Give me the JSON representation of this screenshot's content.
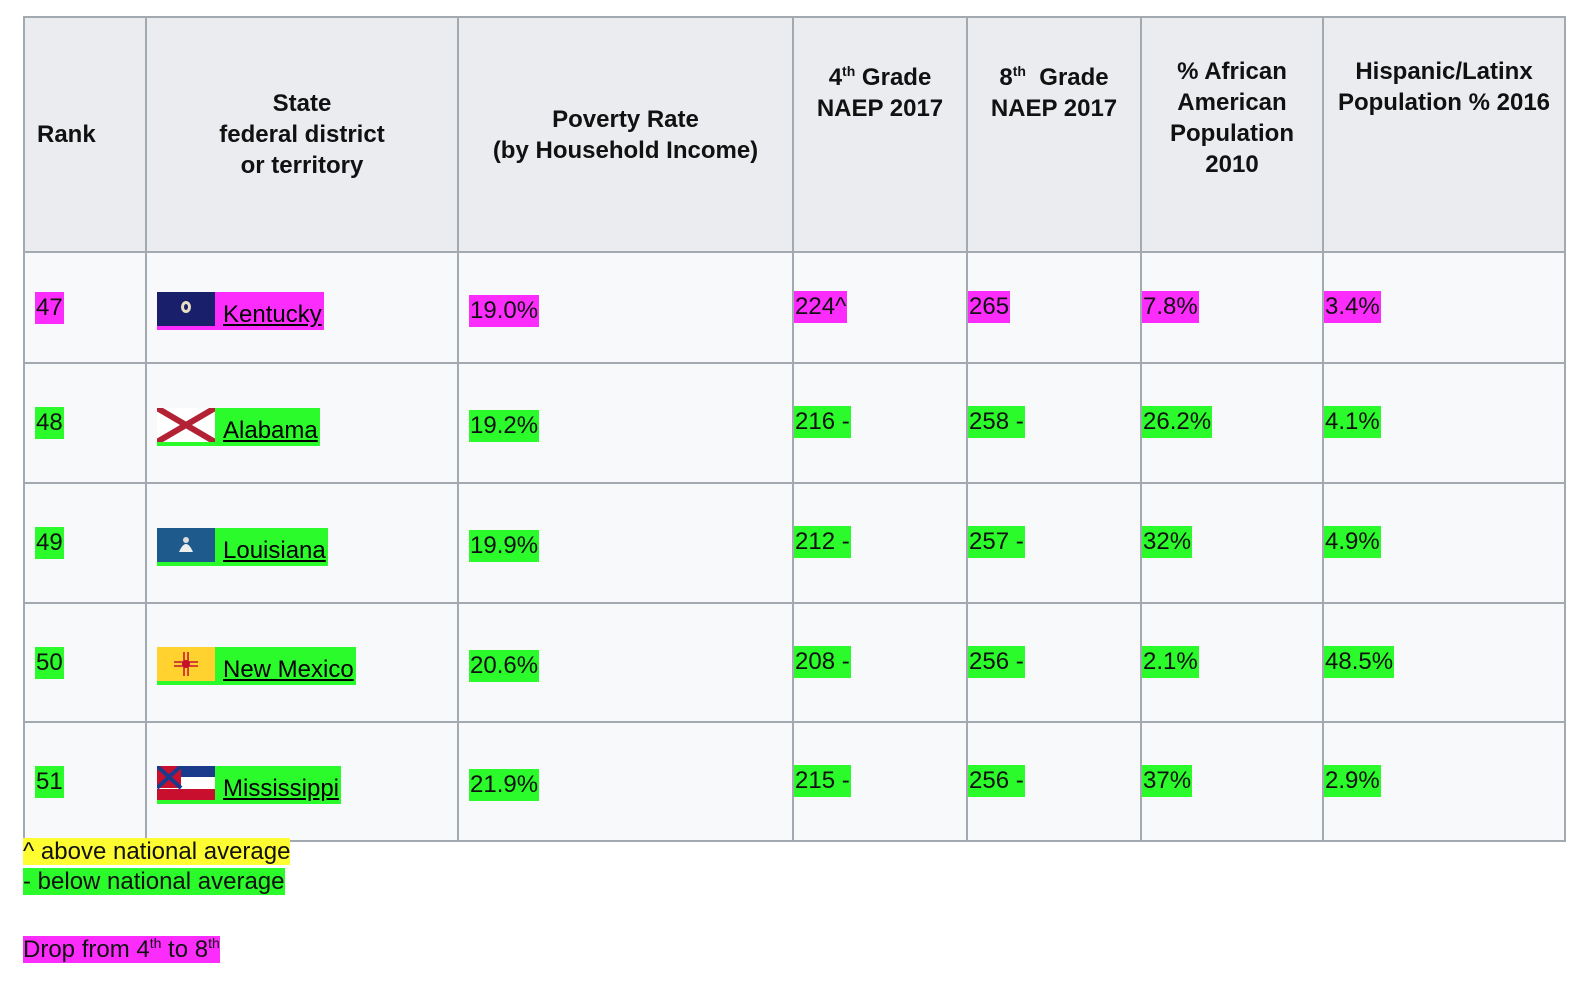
{
  "headers": {
    "rank": "Rank",
    "state_l1": "State",
    "state_l2": "federal district",
    "state_l3": "or territory",
    "poverty_l1": "Poverty Rate",
    "poverty_l2": "(by Household Income)",
    "g4_pre": "4",
    "g4_sup": "th",
    "g4_post": " Grade",
    "g4_l2": "NAEP 2017",
    "g8_pre": "8",
    "g8_sup": "th",
    "g8_post": "  Grade",
    "g8_l2": "NAEP 2017",
    "aa_l1": "% African",
    "aa_l2": "American",
    "aa_l3": "Population",
    "aa_l4": "2010",
    "hisp_l1": "Hispanic/Latinx",
    "hisp_l2": "Population % 2016"
  },
  "colors": {
    "below": "#2bfa2b",
    "drop": "#fc2cfc",
    "above": "#fdfd32"
  },
  "rows": [
    {
      "rank": "47",
      "state": "Kentucky",
      "flag": "kentucky-flag",
      "poverty": "19.0%",
      "g4": "224^",
      "g8": "265",
      "aa": "7.8%",
      "hisp": "3.4%",
      "hl": "m"
    },
    {
      "rank": "48",
      "state": "Alabama",
      "flag": "alabama-flag",
      "poverty": "19.2%",
      "g4": "216 -",
      "g8": "258 -",
      "aa": "26.2%",
      "hisp": "4.1%",
      "hl": "g"
    },
    {
      "rank": "49",
      "state": "Louisiana",
      "flag": "louisiana-flag",
      "poverty": "19.9%",
      "g4": "212 -",
      "g8": "257 -",
      "aa": "32%",
      "hisp": "4.9%",
      "hl": "g"
    },
    {
      "rank": "50",
      "state": "New Mexico",
      "flag": "new-mexico-flag",
      "poverty": "20.6%",
      "g4": "208 -",
      "g8": "256 -",
      "aa": "2.1%",
      "hisp": "48.5%",
      "hl": "g"
    },
    {
      "rank": "51",
      "state": "Mississippi",
      "flag": "mississippi-flag",
      "poverty": "21.9%",
      "g4": "215 -",
      "g8": "256 -",
      "aa": "37%",
      "hisp": "2.9%",
      "hl": "g"
    }
  ],
  "legend": {
    "above": "^ above national average",
    "below": "- below national average",
    "drop_pre": "Drop from 4",
    "drop_sup1": "th",
    "drop_mid": " to 8",
    "drop_sup2": "th"
  }
}
